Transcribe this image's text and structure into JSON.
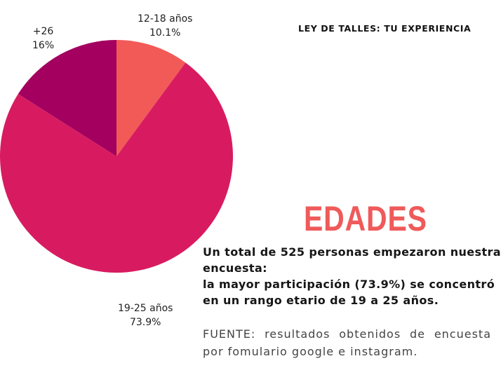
{
  "header": {
    "title": "LEY DE TALLES: TU EXPERIENCIA"
  },
  "section": {
    "title": "EDADES"
  },
  "summary": {
    "line1": "Un total de 525 personas empezaron nuestra",
    "line2": "encuesta:",
    "line3": "la mayor participación (73.9%) se concentró",
    "line4": "en un rango etario de 19 a 25 años."
  },
  "source": {
    "line1": "FUENTE: resultados obtenidos de encuesta",
    "line2": "por fomulario google e instagram."
  },
  "chart_data": {
    "type": "pie",
    "title": "",
    "categories": [
      "12-18 años",
      "19-25 años",
      "+26"
    ],
    "values": [
      10.1,
      73.9,
      16
    ],
    "value_labels": [
      "10.1%",
      "73.9%",
      "16%"
    ],
    "colors": [
      "#f25a57",
      "#d81b60",
      "#a3005f"
    ],
    "start_angle_deg": 0,
    "direction": "clockwise",
    "legend": "none"
  }
}
